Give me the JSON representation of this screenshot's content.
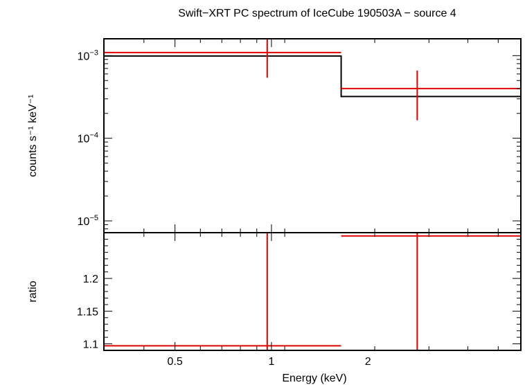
{
  "chart_data": [
    {
      "type": "scatter",
      "title": "Swift−XRT PC spectrum of IceCube 190503A − source 4",
      "ylabel": "counts s⁻¹ keV⁻¹",
      "xscale": "log",
      "yscale": "log",
      "xlim": [
        0.3,
        6.0
      ],
      "ylim": [
        7.2e-06,
        0.0016
      ],
      "yticks": [
        {
          "value": 0.001,
          "base": "10",
          "exp": "−3"
        },
        {
          "value": 0.0001,
          "base": "10",
          "exp": "−4"
        },
        {
          "value": 1e-05,
          "base": "10",
          "exp": "−5"
        }
      ],
      "series": [
        {
          "kind": "data",
          "color": "#e00000",
          "points": [
            {
              "x": 0.97,
              "xlo": 0.3,
              "xhi": 1.65,
              "y": 0.00109,
              "ylo": 0.00054,
              "yhi": 0.0016
            },
            {
              "x": 2.85,
              "xlo": 1.65,
              "xhi": 6.0,
              "y": 0.0004,
              "ylo": 0.000165,
              "yhi": 0.00066
            }
          ]
        },
        {
          "kind": "model",
          "color": "#000000",
          "steps": [
            {
              "xlo": 0.3,
              "xhi": 1.65,
              "y": 0.00099
            },
            {
              "xlo": 1.65,
              "xhi": 6.0,
              "y": 0.00032
            }
          ]
        }
      ]
    },
    {
      "type": "scatter",
      "xlabel": "Energy (keV)",
      "ylabel": "ratio",
      "xscale": "log",
      "xlim": [
        0.3,
        6.0
      ],
      "ylim": [
        1.09,
        1.27
      ],
      "xticks": [
        {
          "value": 0.5,
          "label": "0.5"
        },
        {
          "value": 1,
          "label": "1"
        },
        {
          "value": 2,
          "label": "2"
        }
      ],
      "yticks": [
        {
          "value": 1.1,
          "label": "1.1"
        },
        {
          "value": 1.15,
          "label": "1.15"
        },
        {
          "value": 1.2,
          "label": "1.2"
        }
      ],
      "series": [
        {
          "kind": "data",
          "color": "#e00000",
          "points": [
            {
              "x": 0.97,
              "xlo": 0.3,
              "xhi": 1.65,
              "y": 1.097
            },
            {
              "x": 2.85,
              "xlo": 1.65,
              "xhi": 6.0,
              "y": 1.265
            }
          ]
        }
      ]
    }
  ]
}
